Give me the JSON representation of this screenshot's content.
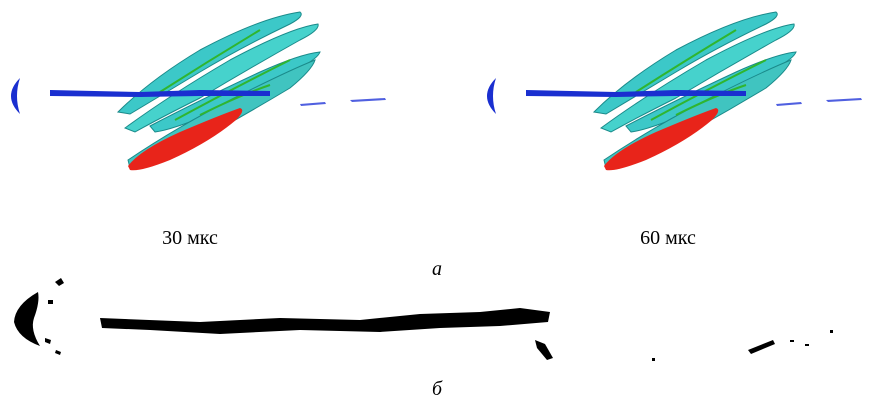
{
  "figure": {
    "panel_a": {
      "captions": [
        "30 мкс",
        "60 мкс"
      ],
      "label": "а"
    },
    "panel_b": {
      "label": "б"
    }
  }
}
